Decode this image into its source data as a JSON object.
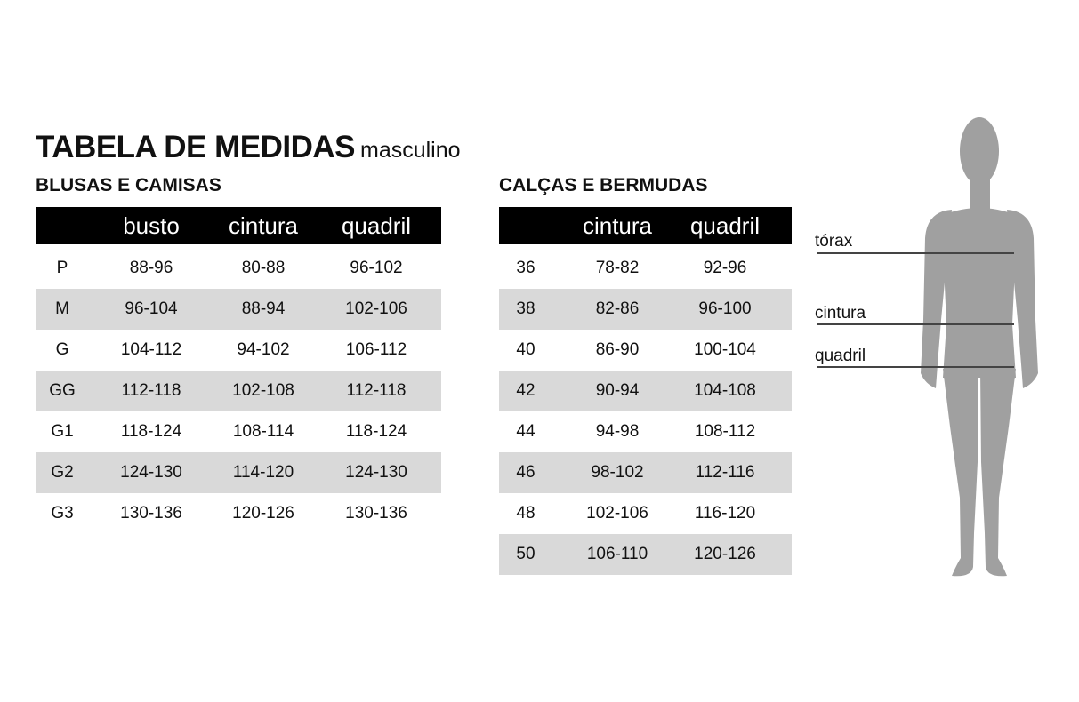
{
  "title": "TABELA DE MEDIDAS",
  "subtitle": "masculino",
  "shirts": {
    "heading": "BLUSAS E CAMISAS",
    "columns": [
      "",
      "busto",
      "cintura",
      "quadril"
    ],
    "rows": [
      [
        "P",
        "88-96",
        "80-88",
        "96-102"
      ],
      [
        "M",
        "96-104",
        "88-94",
        "102-106"
      ],
      [
        "G",
        "104-112",
        "94-102",
        "106-112"
      ],
      [
        "GG",
        "112-118",
        "102-108",
        "112-118"
      ],
      [
        "G1",
        "118-124",
        "108-114",
        "118-124"
      ],
      [
        "G2",
        "124-130",
        "114-120",
        "124-130"
      ],
      [
        "G3",
        "130-136",
        "120-126",
        "130-136"
      ]
    ]
  },
  "pants": {
    "heading": "CALÇAS E BERMUDAS",
    "columns": [
      "",
      "cintura",
      "quadril"
    ],
    "rows": [
      [
        "36",
        "78-82",
        "92-96"
      ],
      [
        "38",
        "82-86",
        "96-100"
      ],
      [
        "40",
        "86-90",
        "100-104"
      ],
      [
        "42",
        "90-94",
        "104-108"
      ],
      [
        "44",
        "94-98",
        "108-112"
      ],
      [
        "46",
        "98-102",
        "112-116"
      ],
      [
        "48",
        "102-106",
        "116-120"
      ],
      [
        "50",
        "106-110",
        "120-126"
      ]
    ]
  },
  "figure": {
    "labels": [
      "tórax",
      "cintura",
      "quadril"
    ],
    "silhouette_color": "#a0a0a0",
    "stripe_color": "#d9d9d9"
  }
}
